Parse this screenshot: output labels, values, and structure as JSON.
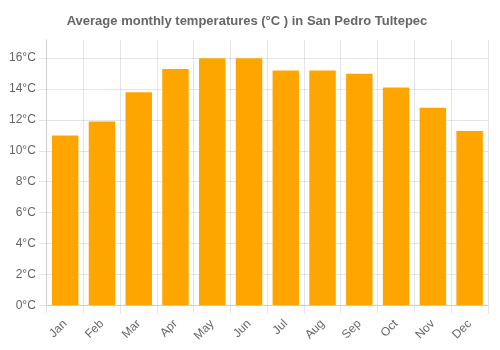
{
  "chart_data": {
    "type": "bar",
    "title": "Average monthly temperatures (°C ) in San Pedro Tultepec",
    "categories": [
      "Jan",
      "Feb",
      "Mar",
      "Apr",
      "May",
      "Jun",
      "Jul",
      "Aug",
      "Sep",
      "Oct",
      "Nov",
      "Dec"
    ],
    "values": [
      11.0,
      11.9,
      13.8,
      15.3,
      16.0,
      16.0,
      15.2,
      15.2,
      15.0,
      14.1,
      12.8,
      11.3
    ],
    "color": "#FFA500",
    "ylim": [
      0,
      17.2
    ],
    "yticks": [
      {
        "value": 0,
        "label": "0°C"
      },
      {
        "value": 2,
        "label": "2°C"
      },
      {
        "value": 4,
        "label": "4°C"
      },
      {
        "value": 6,
        "label": "6°C"
      },
      {
        "value": 8,
        "label": "8°C"
      },
      {
        "value": 10,
        "label": "10°C"
      },
      {
        "value": 12,
        "label": "12°C"
      },
      {
        "value": 14,
        "label": "14°C"
      },
      {
        "value": 16,
        "label": "16°C"
      }
    ],
    "grid": true
  }
}
